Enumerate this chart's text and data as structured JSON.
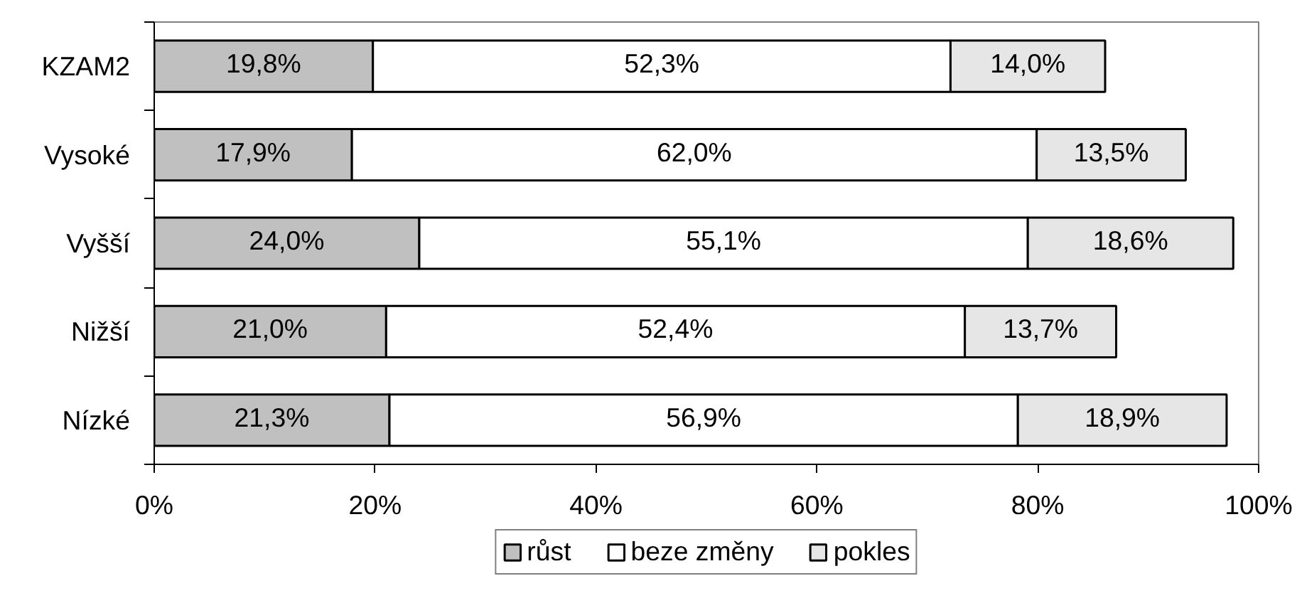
{
  "chart_data": {
    "type": "bar",
    "orientation": "horizontal",
    "stacked": true,
    "categories": [
      "KZAM2",
      "Vysoké",
      "Vyšší",
      "Nižší",
      "Nízké"
    ],
    "series": [
      {
        "name": "růst",
        "color": "#c0c0c0",
        "values": [
          19.8,
          17.9,
          24.0,
          21.0,
          21.3
        ],
        "value_labels": [
          "19,8%",
          "17,9%",
          "24,0%",
          "21,0%",
          "21,3%"
        ]
      },
      {
        "name": "beze změny",
        "color": "#ffffff",
        "values": [
          52.3,
          62.0,
          55.1,
          52.4,
          56.9
        ],
        "value_labels": [
          "52,3%",
          "62,0%",
          "55,1%",
          "52,4%",
          "56,9%"
        ]
      },
      {
        "name": "pokles",
        "color": "#e6e6e6",
        "values": [
          14.0,
          13.5,
          18.6,
          13.7,
          18.9
        ],
        "value_labels": [
          "14,0%",
          "13,5%",
          "18,6%",
          "13,7%",
          "18,9%"
        ]
      }
    ],
    "xlim": [
      0,
      100
    ],
    "xticks": [
      {
        "value": 0,
        "label": "0%"
      },
      {
        "value": 20,
        "label": "20%"
      },
      {
        "value": 40,
        "label": "40%"
      },
      {
        "value": 60,
        "label": "60%"
      },
      {
        "value": 80,
        "label": "80%"
      },
      {
        "value": 100,
        "label": "100%"
      }
    ],
    "legend": "bottom",
    "grid": false
  }
}
